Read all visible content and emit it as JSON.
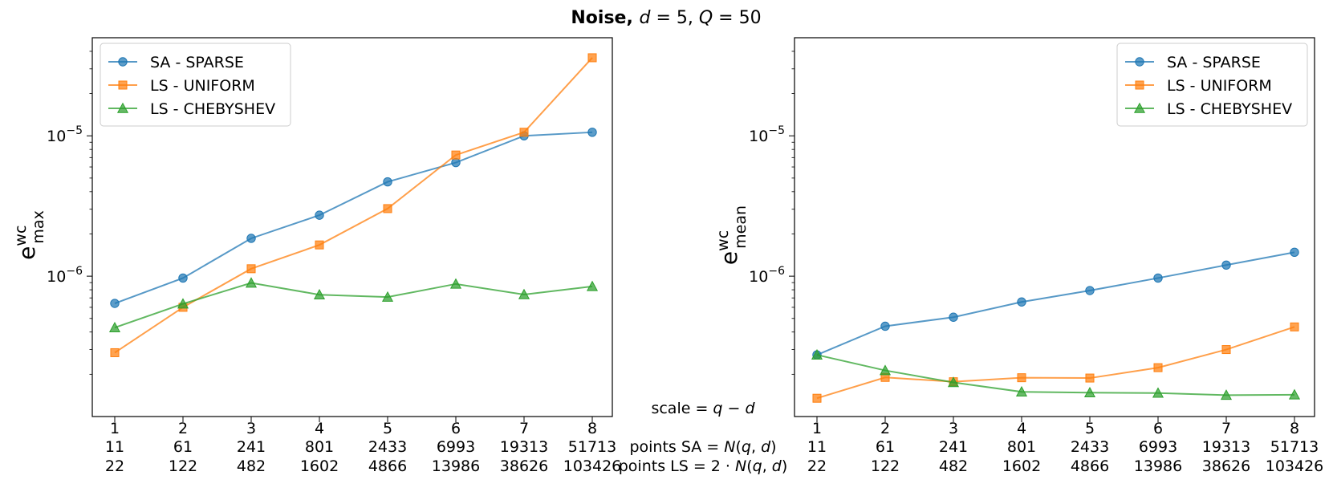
{
  "title": {
    "bold": "Noise,",
    "rest_math": "d = 5, Q = 50",
    "d_var": "d",
    "d_eq": " = 5, ",
    "q_var": "Q",
    "q_eq": " = 50"
  },
  "middle_labels": {
    "scale": "scale = q − d",
    "points_sa": "points SA = N(q, d)",
    "points_ls": "points LS = 2 · N(q, d)"
  },
  "chart_data": [
    {
      "type": "line",
      "yscale": "log",
      "ylabel": "e^wc_max",
      "ylabel_base": "e",
      "ylabel_sup": "wc",
      "ylabel_sub": "max",
      "ylim": [
        1e-07,
        5e-05
      ],
      "yticks": [
        {
          "value": 1e-05,
          "base": "10",
          "exp": "−5"
        },
        {
          "value": 1e-06,
          "base": "10",
          "exp": "−6"
        }
      ],
      "x": [
        1,
        2,
        3,
        4,
        5,
        6,
        7,
        8
      ],
      "x_labels_scale": [
        "1",
        "2",
        "3",
        "4",
        "5",
        "6",
        "7",
        "8"
      ],
      "x_labels_points_sa": [
        "11",
        "61",
        "241",
        "801",
        "2433",
        "6993",
        "19313",
        "51713"
      ],
      "x_labels_points_ls": [
        "22",
        "122",
        "482",
        "1602",
        "4866",
        "13986",
        "38626",
        "103426"
      ],
      "legend_position": "top-left",
      "series": [
        {
          "name": "SA - SPARSE",
          "color": "#1f77b4",
          "marker": "circle",
          "values": [
            6.4e-07,
            9.7e-07,
            1.86e-06,
            2.72e-06,
            4.7e-06,
            6.45e-06,
            1e-05,
            1.06e-05
          ]
        },
        {
          "name": "LS - UNIFORM",
          "color": "#ff7f0e",
          "marker": "square",
          "values": [
            2.85e-07,
            6e-07,
            1.13e-06,
            1.67e-06,
            3.03e-06,
            7.3e-06,
            1.06e-05,
            3.6e-05
          ]
        },
        {
          "name": "LS - CHEBYSHEV",
          "color": "#2ca02c",
          "marker": "triangle",
          "values": [
            4.3e-07,
            6.35e-07,
            8.95e-07,
            7.38e-07,
            7.1e-07,
            8.8e-07,
            7.4e-07,
            8.45e-07
          ]
        }
      ]
    },
    {
      "type": "line",
      "yscale": "log",
      "ylabel": "e^wc_mean",
      "ylabel_base": "e",
      "ylabel_sup": "wc",
      "ylabel_sub": "mean",
      "ylim": [
        1e-07,
        5e-05
      ],
      "yticks": [
        {
          "value": 1e-05,
          "base": "10",
          "exp": "−5"
        },
        {
          "value": 1e-06,
          "base": "10",
          "exp": "−6"
        }
      ],
      "x": [
        1,
        2,
        3,
        4,
        5,
        6,
        7,
        8
      ],
      "x_labels_scale": [
        "1",
        "2",
        "3",
        "4",
        "5",
        "6",
        "7",
        "8"
      ],
      "x_labels_points_sa": [
        "11",
        "61",
        "241",
        "801",
        "2433",
        "6993",
        "19313",
        "51713"
      ],
      "x_labels_points_ls": [
        "22",
        "122",
        "482",
        "1602",
        "4866",
        "13986",
        "38626",
        "103426"
      ],
      "legend_position": "top-right",
      "series": [
        {
          "name": "SA - SPARSE",
          "color": "#1f77b4",
          "marker": "circle",
          "values": [
            2.75e-07,
            4.4e-07,
            5.1e-07,
            6.55e-07,
            7.9e-07,
            9.7e-07,
            1.2e-06,
            1.48e-06
          ]
        },
        {
          "name": "LS - UNIFORM",
          "color": "#ff7f0e",
          "marker": "square",
          "values": [
            1.35e-07,
            1.9e-07,
            1.77e-07,
            1.89e-07,
            1.88e-07,
            2.23e-07,
            3e-07,
            4.35e-07
          ]
        },
        {
          "name": "LS - CHEBYSHEV",
          "color": "#2ca02c",
          "marker": "triangle",
          "values": [
            2.75e-07,
            2.13e-07,
            1.75e-07,
            1.5e-07,
            1.48e-07,
            1.47e-07,
            1.42e-07,
            1.43e-07
          ]
        }
      ]
    }
  ]
}
